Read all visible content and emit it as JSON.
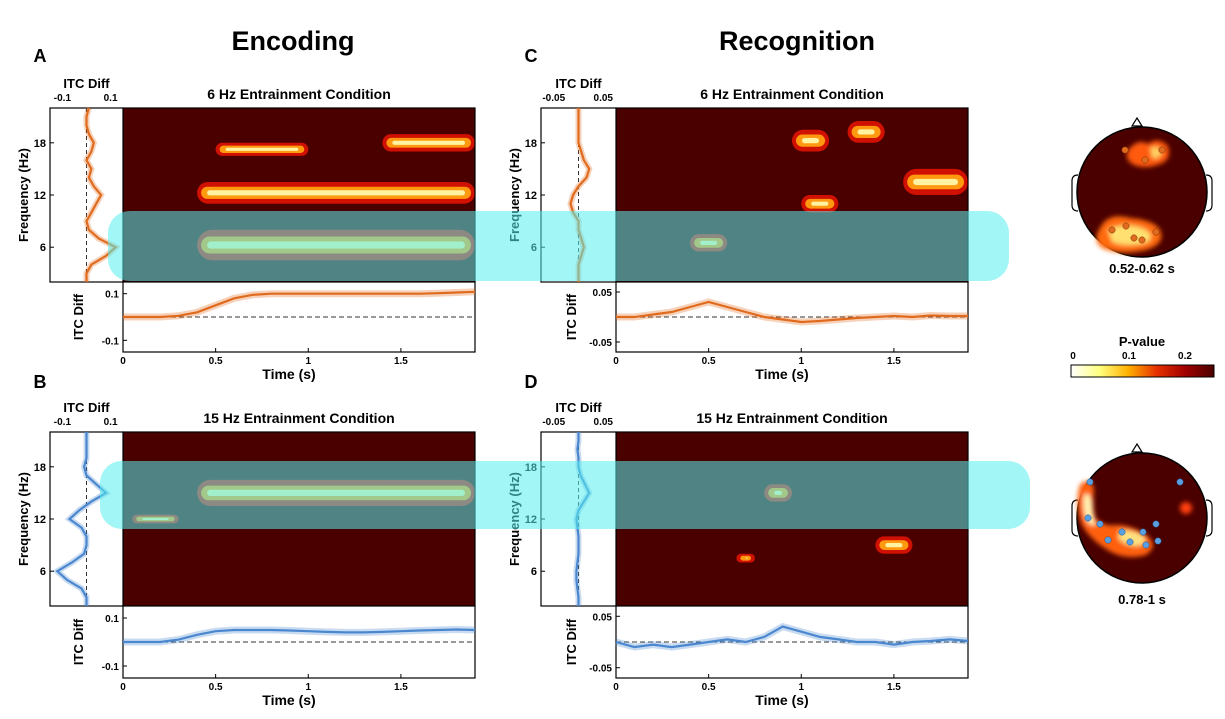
{
  "headings": {
    "encoding": "Encoding",
    "recognition": "Recognition"
  },
  "colors": {
    "orange_line": "#e06b1e",
    "blue_line": "#4a87cf",
    "background_red": "#4b0000",
    "highlight_cyan": "#55eeee"
  },
  "colorbar": {
    "title": "P-value",
    "ticks": [
      "0",
      "0.1",
      "0.2"
    ],
    "colormap": "hot (reversed)"
  },
  "chart_data": [
    {
      "panel": "A",
      "type": "heatmap",
      "title": "6 Hz Entrainment Condition",
      "xlabel": "Time (s)",
      "ylabel": "Frequency (Hz)",
      "x_ticks": [
        "0",
        "0.5",
        "1",
        "1.5"
      ],
      "y_ticks": [
        "6",
        "12",
        "18"
      ],
      "xlim": [
        0,
        1.9
      ],
      "ylim": [
        2,
        22
      ],
      "side_plot": {
        "title": "ITC Diff",
        "ticks": [
          "-0.1",
          "0.1"
        ],
        "xlim": [
          -0.15,
          0.15
        ],
        "freq": [
          2,
          3,
          4,
          5,
          6,
          7,
          8,
          9,
          10,
          11,
          12,
          13,
          14,
          15,
          16,
          17,
          18,
          19,
          20,
          21,
          22
        ],
        "values": [
          0.0,
          0.0,
          0.02,
          0.08,
          0.12,
          0.05,
          0.01,
          0.0,
          0.02,
          0.04,
          0.06,
          0.03,
          0.01,
          0.02,
          0.0,
          0.02,
          0.03,
          0.01,
          0.0,
          0.0,
          0.01
        ]
      },
      "bottom_plot": {
        "ylabel": "ITC Diff",
        "y_ticks": [
          "0.1",
          "-0.1"
        ],
        "ylim": [
          -0.15,
          0.15
        ],
        "time": [
          0,
          0.1,
          0.2,
          0.3,
          0.4,
          0.5,
          0.6,
          0.7,
          0.8,
          0.9,
          1.0,
          1.1,
          1.2,
          1.3,
          1.4,
          1.5,
          1.6,
          1.7,
          1.8,
          1.9
        ],
        "values": [
          0,
          0,
          0,
          0.005,
          0.02,
          0.05,
          0.08,
          0.095,
          0.1,
          0.1,
          0.1,
          0.1,
          0.1,
          0.1,
          0.1,
          0.1,
          0.1,
          0.102,
          0.105,
          0.108
        ]
      },
      "significant_clusters": [
        {
          "t": [
            0.4,
            1.9
          ],
          "f": [
            4.5,
            8
          ]
        },
        {
          "t": [
            0.4,
            1.9
          ],
          "f": [
            11,
            13.5
          ]
        },
        {
          "t": [
            0.5,
            1.0
          ],
          "f": [
            16.5,
            18
          ]
        },
        {
          "t": [
            1.4,
            1.9
          ],
          "f": [
            17,
            19
          ]
        }
      ]
    },
    {
      "panel": "B",
      "type": "heatmap",
      "title": "15 Hz Entrainment Condition",
      "xlabel": "Time (s)",
      "ylabel": "Frequency (Hz)",
      "x_ticks": [
        "0",
        "0.5",
        "1",
        "1.5"
      ],
      "y_ticks": [
        "6",
        "12",
        "18"
      ],
      "xlim": [
        0,
        1.9
      ],
      "ylim": [
        2,
        22
      ],
      "side_plot": {
        "title": "ITC Diff",
        "ticks": [
          "-0.1",
          "0.1"
        ],
        "xlim": [
          -0.15,
          0.15
        ],
        "freq": [
          2,
          3,
          4,
          5,
          6,
          7,
          8,
          9,
          10,
          11,
          12,
          13,
          14,
          15,
          16,
          17,
          18,
          19,
          20,
          21,
          22
        ],
        "values": [
          0.0,
          0.0,
          -0.02,
          -0.08,
          -0.12,
          -0.06,
          -0.01,
          0.0,
          0.0,
          -0.02,
          -0.07,
          -0.03,
          0.02,
          0.08,
          0.04,
          0.0,
          -0.01,
          0.0,
          0.0,
          0.0,
          0.0
        ]
      },
      "bottom_plot": {
        "ylabel": "ITC Diff",
        "y_ticks": [
          "0.1",
          "-0.1"
        ],
        "ylim": [
          -0.15,
          0.15
        ],
        "time": [
          0,
          0.1,
          0.2,
          0.3,
          0.4,
          0.5,
          0.6,
          0.7,
          0.8,
          0.9,
          1.0,
          1.1,
          1.2,
          1.3,
          1.4,
          1.5,
          1.6,
          1.7,
          1.8,
          1.9
        ],
        "values": [
          0,
          0,
          0,
          0.01,
          0.03,
          0.045,
          0.05,
          0.05,
          0.05,
          0.048,
          0.045,
          0.042,
          0.04,
          0.04,
          0.042,
          0.045,
          0.048,
          0.05,
          0.052,
          0.05
        ]
      },
      "significant_clusters": [
        {
          "t": [
            0.4,
            1.9
          ],
          "f": [
            13.5,
            16.5
          ]
        },
        {
          "t": [
            0.05,
            0.3
          ],
          "f": [
            11.5,
            12.5
          ]
        }
      ]
    },
    {
      "panel": "C",
      "type": "heatmap",
      "title": "6 Hz Entrainment Condition",
      "xlabel": "Time (s)",
      "ylabel": "Frequency (Hz)",
      "x_ticks": [
        "0",
        "0.5",
        "1",
        "1.5"
      ],
      "y_ticks": [
        "6",
        "12",
        "18"
      ],
      "xlim": [
        0,
        1.9
      ],
      "ylim": [
        2,
        22
      ],
      "side_plot": {
        "title": "ITC Diff",
        "ticks": [
          "-0.05",
          "0.05"
        ],
        "xlim": [
          -0.07,
          0.07
        ],
        "freq": [
          2,
          3,
          4,
          5,
          6,
          7,
          8,
          9,
          10,
          11,
          12,
          13,
          14,
          15,
          16,
          17,
          18,
          19,
          20,
          21,
          22
        ],
        "values": [
          0.0,
          0.0,
          0.0,
          0.005,
          0.01,
          0.005,
          0.0,
          0.0,
          -0.01,
          -0.015,
          -0.01,
          0.0,
          0.015,
          0.02,
          0.01,
          0.005,
          0.0,
          0.0,
          0.0,
          0.0,
          0.0
        ]
      },
      "bottom_plot": {
        "ylabel": "ITC Diff",
        "y_ticks": [
          "0.05",
          "-0.05"
        ],
        "ylim": [
          -0.07,
          0.07
        ],
        "time": [
          0,
          0.1,
          0.2,
          0.3,
          0.4,
          0.5,
          0.6,
          0.7,
          0.8,
          0.9,
          1.0,
          1.1,
          1.2,
          1.3,
          1.4,
          1.5,
          1.6,
          1.7,
          1.8,
          1.9
        ],
        "values": [
          0.0,
          0.0,
          0.005,
          0.01,
          0.02,
          0.03,
          0.02,
          0.01,
          0.0,
          -0.005,
          -0.01,
          -0.008,
          -0.005,
          -0.002,
          0.0,
          0.002,
          0.0,
          0.003,
          0.002,
          0.002
        ]
      },
      "significant_clusters": [
        {
          "t": [
            0.4,
            0.6
          ],
          "f": [
            5.5,
            7.5
          ]
        },
        {
          "t": [
            1.0,
            1.2
          ],
          "f": [
            10,
            12
          ]
        },
        {
          "t": [
            1.55,
            1.9
          ],
          "f": [
            12,
            15
          ]
        },
        {
          "t": [
            0.95,
            1.15
          ],
          "f": [
            17,
            19.5
          ]
        },
        {
          "t": [
            1.25,
            1.45
          ],
          "f": [
            18,
            20.5
          ]
        }
      ]
    },
    {
      "panel": "D",
      "type": "heatmap",
      "title": "15 Hz Entrainment Condition",
      "xlabel": "Time (s)",
      "ylabel": "Frequency (Hz)",
      "x_ticks": [
        "0",
        "0.5",
        "1",
        "1.5"
      ],
      "y_ticks": [
        "6",
        "12",
        "18"
      ],
      "xlim": [
        0,
        1.9
      ],
      "ylim": [
        2,
        22
      ],
      "side_plot": {
        "title": "ITC Diff",
        "ticks": [
          "-0.05",
          "0.05"
        ],
        "xlim": [
          -0.07,
          0.07
        ],
        "freq": [
          2,
          3,
          4,
          5,
          6,
          7,
          8,
          9,
          10,
          11,
          12,
          13,
          14,
          15,
          16,
          17,
          18,
          19,
          20,
          21,
          22
        ],
        "values": [
          0.0,
          0.0,
          -0.002,
          -0.004,
          -0.004,
          -0.002,
          0.0,
          0.0,
          0.0,
          -0.002,
          -0.004,
          0.0,
          0.01,
          0.02,
          0.012,
          0.004,
          0.0,
          0.0,
          -0.002,
          0.0,
          0.0
        ]
      },
      "bottom_plot": {
        "ylabel": "ITC Diff",
        "y_ticks": [
          "0.05",
          "-0.05"
        ],
        "ylim": [
          -0.07,
          0.07
        ],
        "time": [
          0,
          0.1,
          0.2,
          0.3,
          0.4,
          0.5,
          0.6,
          0.7,
          0.8,
          0.9,
          1.0,
          1.1,
          1.2,
          1.3,
          1.4,
          1.5,
          1.6,
          1.7,
          1.8,
          1.9
        ],
        "values": [
          0.0,
          -0.01,
          -0.005,
          -0.01,
          -0.005,
          0.0,
          0.005,
          0.0,
          0.01,
          0.03,
          0.02,
          0.01,
          0.005,
          0.0,
          0.0,
          -0.005,
          0.0,
          0.002,
          0.005,
          0.002
        ]
      },
      "significant_clusters": [
        {
          "t": [
            0.8,
            0.95
          ],
          "f": [
            14,
            16
          ]
        },
        {
          "t": [
            1.4,
            1.6
          ],
          "f": [
            8,
            10
          ]
        },
        {
          "t": [
            0.65,
            0.75
          ],
          "f": [
            7,
            8
          ]
        }
      ]
    }
  ],
  "topomaps": [
    {
      "label": "0.52-0.62 s",
      "electrode_color": "#e06b1e"
    },
    {
      "label": "0.78-1 s",
      "electrode_color": "#5aa0e0"
    }
  ]
}
